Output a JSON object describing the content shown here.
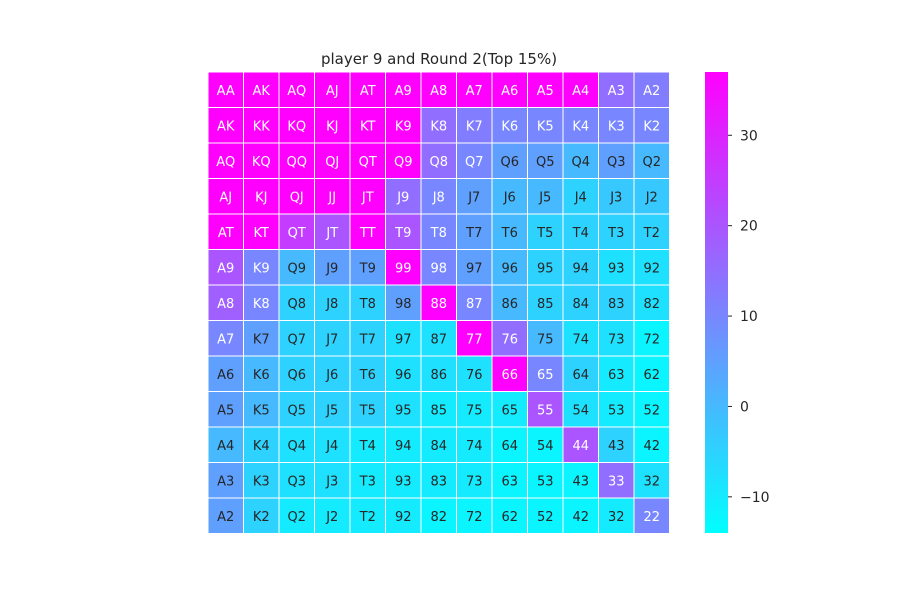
{
  "chart_data": {
    "type": "heatmap",
    "title": "player 9 and Round 2(Top 15%)",
    "xlabel": "",
    "ylabel": "",
    "colormap": [
      "#00ffff",
      "#ff00ff"
    ],
    "vmin": -14,
    "vmax": 37,
    "colorbar_ticks": [
      30,
      20,
      10,
      0,
      -10
    ],
    "grid": true,
    "gridline_color": "#ffffff",
    "rows": [
      [
        "AA",
        "AK",
        "AQ",
        "AJ",
        "AT",
        "A9",
        "A8",
        "A7",
        "A6",
        "A5",
        "A4",
        "A3",
        "A2"
      ],
      [
        "AK",
        "KK",
        "KQ",
        "KJ",
        "KT",
        "K9",
        "K8",
        "K7",
        "K6",
        "K5",
        "K4",
        "K3",
        "K2"
      ],
      [
        "AQ",
        "KQ",
        "QQ",
        "QJ",
        "QT",
        "Q9",
        "Q8",
        "Q7",
        "Q6",
        "Q5",
        "Q4",
        "Q3",
        "Q2"
      ],
      [
        "AJ",
        "KJ",
        "QJ",
        "JJ",
        "JT",
        "J9",
        "J8",
        "J7",
        "J6",
        "J5",
        "J4",
        "J3",
        "J2"
      ],
      [
        "AT",
        "KT",
        "QT",
        "JT",
        "TT",
        "T9",
        "T8",
        "T7",
        "T6",
        "T5",
        "T4",
        "T3",
        "T2"
      ],
      [
        "A9",
        "K9",
        "Q9",
        "J9",
        "T9",
        "99",
        "98",
        "97",
        "96",
        "95",
        "94",
        "93",
        "92"
      ],
      [
        "A8",
        "K8",
        "Q8",
        "J8",
        "T8",
        "98",
        "88",
        "87",
        "86",
        "85",
        "84",
        "83",
        "82"
      ],
      [
        "A7",
        "K7",
        "Q7",
        "J7",
        "T7",
        "97",
        "87",
        "77",
        "76",
        "75",
        "74",
        "73",
        "72"
      ],
      [
        "A6",
        "K6",
        "Q6",
        "J6",
        "T6",
        "96",
        "86",
        "76",
        "66",
        "65",
        "64",
        "63",
        "62"
      ],
      [
        "A5",
        "K5",
        "Q5",
        "J5",
        "T5",
        "95",
        "85",
        "75",
        "65",
        "55",
        "54",
        "53",
        "52"
      ],
      [
        "A4",
        "K4",
        "Q4",
        "J4",
        "T4",
        "94",
        "84",
        "74",
        "64",
        "54",
        "44",
        "43",
        "42"
      ],
      [
        "A3",
        "K3",
        "Q3",
        "J3",
        "T3",
        "93",
        "83",
        "73",
        "63",
        "53",
        "43",
        "33",
        "32"
      ],
      [
        "A2",
        "K2",
        "Q2",
        "J2",
        "T2",
        "92",
        "82",
        "72",
        "62",
        "52",
        "42",
        "32",
        "22"
      ]
    ],
    "values": [
      [
        37,
        37,
        37,
        37,
        37,
        37,
        37,
        37,
        37,
        37,
        37,
        15,
        12
      ],
      [
        37,
        37,
        37,
        37,
        37,
        37,
        15,
        12,
        10,
        10,
        10,
        10,
        10
      ],
      [
        37,
        37,
        37,
        37,
        37,
        37,
        15,
        10,
        5,
        5,
        0,
        5,
        0
      ],
      [
        37,
        37,
        37,
        37,
        37,
        15,
        10,
        5,
        0,
        0,
        -5,
        -3,
        -3
      ],
      [
        37,
        37,
        25,
        20,
        37,
        20,
        10,
        5,
        0,
        -5,
        -5,
        -5,
        -5
      ],
      [
        20,
        10,
        0,
        5,
        5,
        37,
        10,
        5,
        0,
        -5,
        -5,
        -8,
        -8
      ],
      [
        18,
        10,
        -5,
        -5,
        -5,
        5,
        37,
        10,
        0,
        -5,
        -5,
        -5,
        -8
      ],
      [
        10,
        5,
        -5,
        -5,
        -5,
        -8,
        -8,
        37,
        15,
        0,
        -8,
        -8,
        -12
      ],
      [
        5,
        0,
        -5,
        -5,
        -5,
        -8,
        -8,
        -8,
        37,
        10,
        -5,
        -10,
        -12
      ],
      [
        5,
        0,
        -5,
        -5,
        -5,
        -8,
        -10,
        -10,
        -10,
        20,
        -8,
        -10,
        -12
      ],
      [
        0,
        -5,
        -8,
        -8,
        -10,
        -10,
        -10,
        -10,
        -12,
        -12,
        20,
        -5,
        -12
      ],
      [
        5,
        -5,
        -8,
        -8,
        -10,
        -10,
        -10,
        -10,
        -12,
        -12,
        -12,
        15,
        -8
      ],
      [
        5,
        -5,
        -10,
        -10,
        -10,
        -10,
        -12,
        -12,
        -12,
        -12,
        -12,
        -10,
        10
      ]
    ]
  }
}
